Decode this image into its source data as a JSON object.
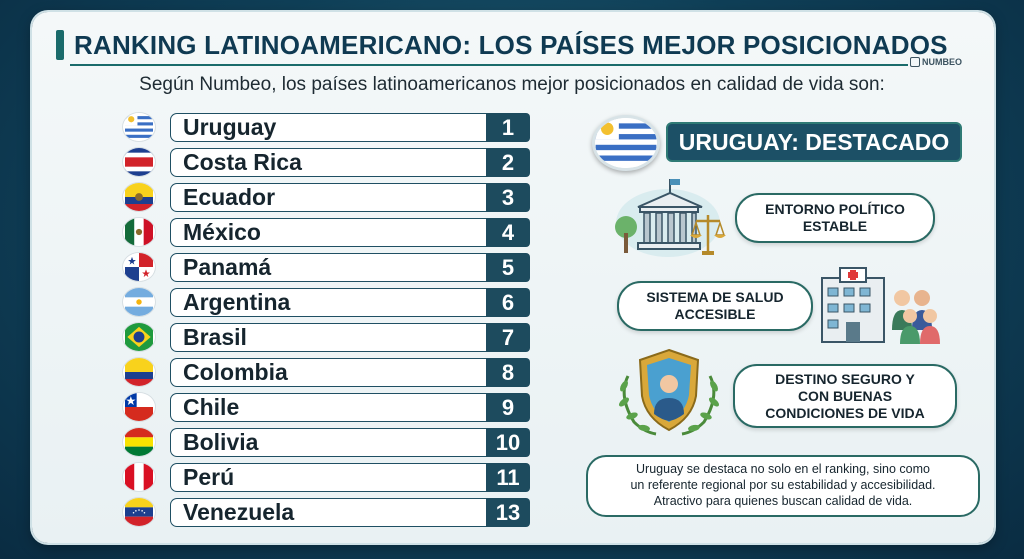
{
  "header": {
    "title": "RANKING LATINOAMERICANO: LOS PAÍSES MEJOR POSICIONADOS",
    "logo_text": "NUMBEO",
    "subtitle": "Según Numbeo, los países latinoamericanos mejor posicionados en calidad de vida son:"
  },
  "ranking": [
    {
      "country": "Uruguay",
      "rank": "1",
      "flag": "uruguay-flag-icon"
    },
    {
      "country": "Costa Rica",
      "rank": "2",
      "flag": "costa-rica-flag-icon"
    },
    {
      "country": "Ecuador",
      "rank": "3",
      "flag": "ecuador-flag-icon"
    },
    {
      "country": "México",
      "rank": "4",
      "flag": "mexico-flag-icon"
    },
    {
      "country": "Panamá",
      "rank": "5",
      "flag": "panama-flag-icon"
    },
    {
      "country": "Argentina",
      "rank": "6",
      "flag": "argentina-flag-icon"
    },
    {
      "country": "Brasil",
      "rank": "7",
      "flag": "brazil-flag-icon"
    },
    {
      "country": "Colombia",
      "rank": "8",
      "flag": "colombia-flag-icon"
    },
    {
      "country": "Chile",
      "rank": "9",
      "flag": "chile-flag-icon"
    },
    {
      "country": "Bolivia",
      "rank": "10",
      "flag": "bolivia-flag-icon"
    },
    {
      "country": "Perú",
      "rank": "11",
      "flag": "peru-flag-icon"
    },
    {
      "country": "Venezuela",
      "rank": "13",
      "flag": "venezuela-flag-icon"
    }
  ],
  "highlight": {
    "banner": "URUGUAY: DESTACADO",
    "feature_1": {
      "line1": "ENTORNO POLÍTICO",
      "line2": "ESTABLE",
      "icon": "government-building-icon"
    },
    "feature_2": {
      "line1": "SISTEMA DE SALUD",
      "line2": "ACCESIBLE",
      "icon": "hospital-icon"
    },
    "feature_3": {
      "line1": "DESTINO SEGURO Y",
      "line2": "CON BUENAS",
      "line3": "CONDICIONES DE VIDA",
      "icon": "shield-person-icon"
    },
    "note": {
      "line1": "Uruguay se destaca no solo en el ranking, sino como",
      "line2": "un referente regional por su estabilidad y accesibilidad.",
      "line3": "Atractivo para quienes buscan calidad de vida."
    }
  },
  "colors": {
    "accent": "#1d4b5e",
    "border": "#2a6a64",
    "background": "#0f3f57"
  }
}
